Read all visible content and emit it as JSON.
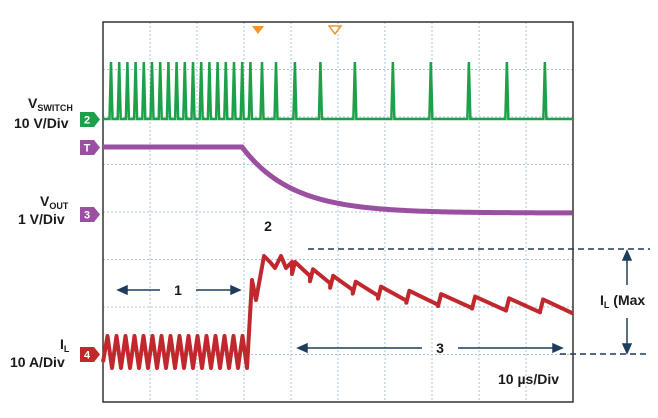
{
  "channels": [
    {
      "marker": "2",
      "label": {
        "main": "V",
        "sub": "SWITCH"
      },
      "scale": "10 V/Div"
    },
    {
      "marker": "T"
    },
    {
      "marker": "3",
      "label": {
        "main": "V",
        "sub": "OUT"
      },
      "scale": "1 V/Div"
    },
    {
      "marker": "4",
      "label": {
        "main": "I",
        "sub": "L"
      },
      "scale": "10 A/Div"
    }
  ],
  "annotations": {
    "phase1": "1",
    "phase2": "2",
    "phase3": "3",
    "il_max": {
      "main": "I",
      "sub": "L",
      "rest": " (Max"
    }
  },
  "timebase": "10 µs/Div"
}
